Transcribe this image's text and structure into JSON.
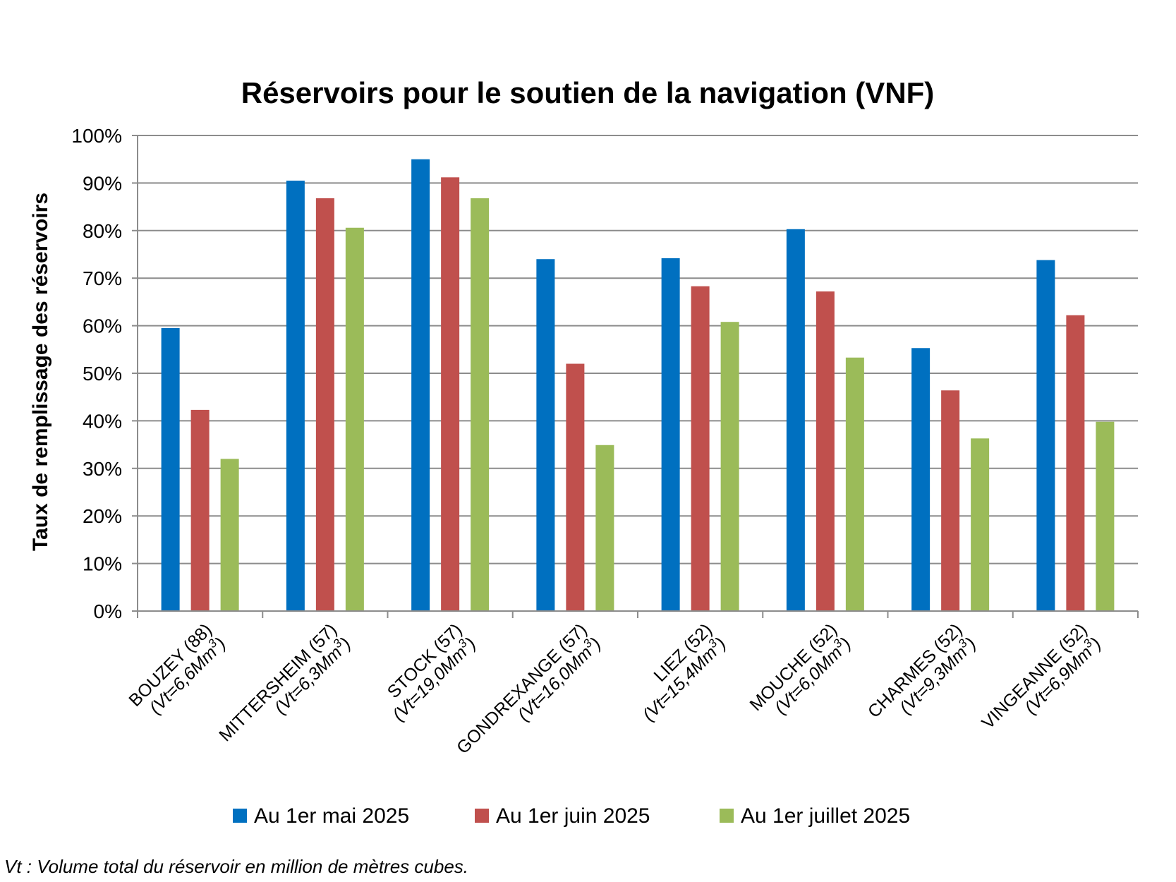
{
  "chart_data": {
    "type": "bar",
    "title": "Réservoirs pour le soutien de la navigation (VNF)",
    "ylabel": "Taux de remplissage des réservoirs",
    "xlabel": "",
    "ylim": [
      0,
      100
    ],
    "yticks": [
      "0%",
      "10%",
      "20%",
      "30%",
      "40%",
      "50%",
      "60%",
      "70%",
      "80%",
      "90%",
      "100%"
    ],
    "grid": true,
    "legend_position": "bottom",
    "categories": [
      {
        "name": "BOUZEY (88)",
        "vt": "(Vt=6,6Mm",
        "sup": "3",
        "close": ")"
      },
      {
        "name": "MITTERSHEIM (57)",
        "vt": "(Vt=6,3Mm",
        "sup": "3",
        "close": ")"
      },
      {
        "name": "STOCK (57)",
        "vt": "(Vt=19,0Mm",
        "sup": "3",
        "close": ")"
      },
      {
        "name": "GONDREXANGE (57)",
        "vt": "(Vt=16,0Mm",
        "sup": "3",
        "close": ")"
      },
      {
        "name": "LIEZ (52)",
        "vt": "(Vt=15,4Mm",
        "sup": "3",
        "close": ")"
      },
      {
        "name": "MOUCHE (52)",
        "vt": "(Vt=6,0Mm",
        "sup": "3",
        "close": ")"
      },
      {
        "name": "CHARMES (52)",
        "vt": "(Vt=9,3Mm",
        "sup": "3",
        "close": ")"
      },
      {
        "name": "VINGEANNE (52)",
        "vt": "(Vt=6,9Mm",
        "sup": "3",
        "close": ")"
      }
    ],
    "series": [
      {
        "name": "Au 1er mai 2025",
        "color": "#0070C0",
        "values": [
          59.5,
          90.5,
          95,
          74,
          74.2,
          80.3,
          55.3,
          73.8
        ]
      },
      {
        "name": "Au 1er juin 2025",
        "color": "#C0504D",
        "values": [
          42.3,
          86.8,
          91.2,
          52,
          68.3,
          67.2,
          46.4,
          62.2
        ]
      },
      {
        "name": "Au 1er juillet 2025",
        "color": "#9BBB59",
        "values": [
          32,
          80.6,
          86.8,
          34.9,
          60.8,
          53.3,
          36.3,
          39.8
        ]
      }
    ]
  },
  "footnote": "Vt : Volume total du réservoir en million de mètres cubes."
}
